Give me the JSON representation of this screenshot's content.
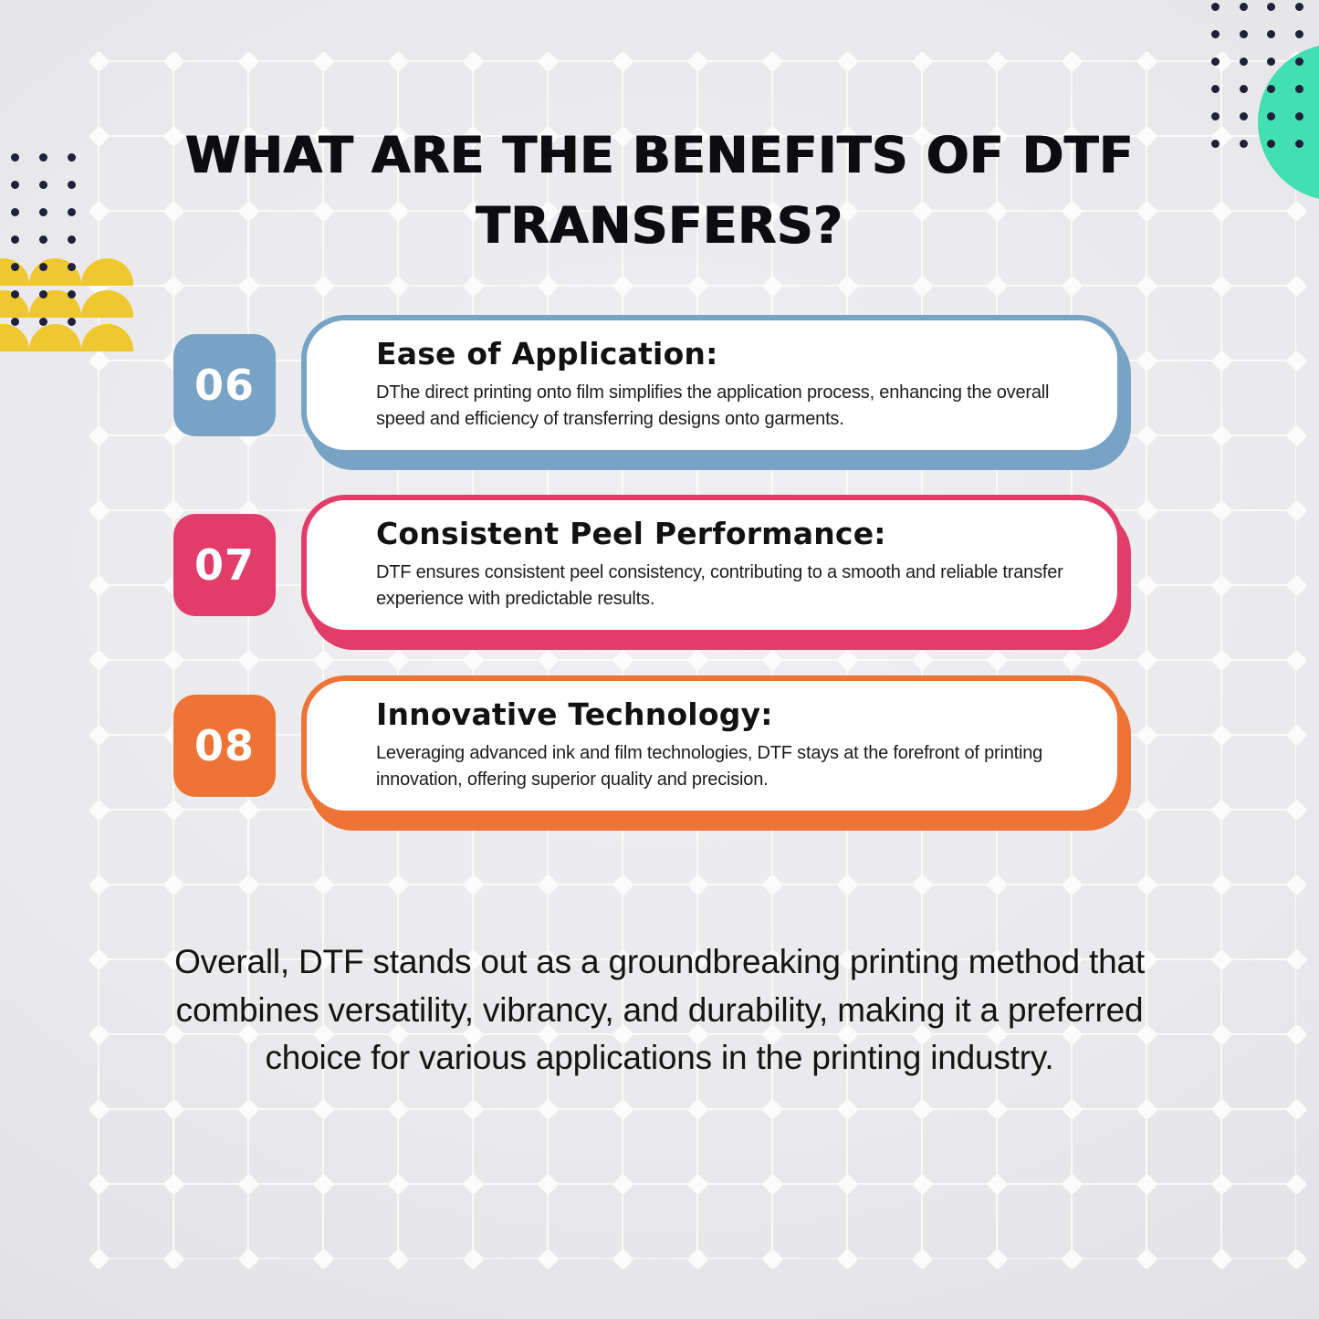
{
  "title": "WHAT ARE THE BENEFITS OF DTF TRANSFERS?",
  "cards": [
    {
      "number": "06",
      "heading": "Ease of Application:",
      "body": "DThe direct printing onto film simplifies the application process, enhancing the overall speed and efficiency of transferring designs onto garments.",
      "color": "#78a3c4"
    },
    {
      "number": "07",
      "heading": "Consistent Peel Performance:",
      "body": "DTF ensures consistent peel consistency, contributing to a smooth and reliable transfer experience with predictable results.",
      "color": "#e23c6b"
    },
    {
      "number": "08",
      "heading": "Innovative Technology:",
      "body": "Leveraging advanced ink and film technologies, DTF stays at the forefront of printing innovation, offering superior quality and precision.",
      "color": "#ed7436"
    }
  ],
  "footer": "Overall, DTF stands out as a groundbreaking printing method that combines versatility, vibrancy, and durability, making it a preferred choice for various applications in the printing industry.",
  "decorations": {
    "dot_color": "#20203a",
    "teal_circle_color": "#42dfb1",
    "yellow_semicircle_color": "#efc72f",
    "grid_line_color": "#ffffff"
  }
}
